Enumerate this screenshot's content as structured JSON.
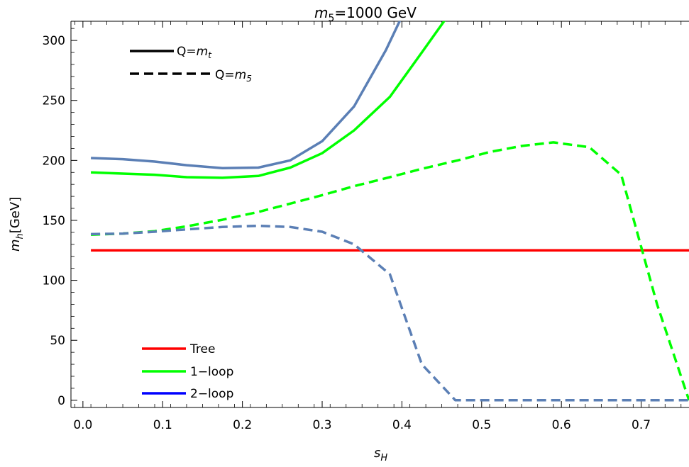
{
  "chart_data": {
    "type": "line",
    "title_main": "m",
    "title_sub": "5",
    "title_rest": "=1000 GeV",
    "xlabel_main": "s",
    "xlabel_sub": "H",
    "ylabel_main": "m",
    "ylabel_sub": "h",
    "ylabel_rest": "[GeV]",
    "xlim": [
      -0.015,
      0.76
    ],
    "ylim": [
      -6,
      316
    ],
    "xticks": [
      "0.0",
      "0.1",
      "0.2",
      "0.3",
      "0.4",
      "0.5",
      "0.6",
      "0.7"
    ],
    "xtick_values": [
      0.0,
      0.1,
      0.2,
      0.3,
      0.4,
      0.5,
      0.6,
      0.7
    ],
    "yticks": [
      "0",
      "50",
      "100",
      "150",
      "200",
      "250",
      "300"
    ],
    "ytick_values": [
      0,
      50,
      100,
      150,
      200,
      250,
      300
    ],
    "colors": {
      "tree": "#ff0000",
      "one_loop": "#00ff00",
      "two_loop": "#5b7fb5",
      "two_loop_legend": "#0000ff",
      "scale_legend": "#000000"
    },
    "series": [
      {
        "name": "Tree",
        "style": "solid",
        "color": "#ff0000",
        "x": [
          0.01,
          0.76
        ],
        "y": [
          125,
          125
        ]
      },
      {
        "name": "1-loop",
        "scale": "Q=m_t",
        "style": "solid",
        "color": "#00ff00",
        "x": [
          0.01,
          0.05,
          0.09,
          0.13,
          0.175,
          0.22,
          0.26,
          0.3,
          0.34,
          0.385,
          0.425,
          0.455,
          0.47
        ],
        "y": [
          190,
          189,
          188,
          186,
          185.5,
          187,
          194,
          206,
          225,
          253,
          290,
          318,
          330
        ]
      },
      {
        "name": "2-loop",
        "scale": "Q=m_t",
        "style": "solid",
        "color": "#5b7fb5",
        "x": [
          0.01,
          0.05,
          0.09,
          0.13,
          0.175,
          0.22,
          0.26,
          0.3,
          0.34,
          0.38,
          0.4,
          0.41
        ],
        "y": [
          202,
          201,
          199,
          196,
          193.5,
          194,
          200,
          216,
          245,
          292,
          320,
          332
        ]
      },
      {
        "name": "1-loop",
        "scale": "Q=m_5",
        "style": "dashed",
        "color": "#00ff00",
        "x": [
          0.01,
          0.05,
          0.09,
          0.13,
          0.175,
          0.22,
          0.26,
          0.3,
          0.34,
          0.385,
          0.425,
          0.47,
          0.51,
          0.55,
          0.59,
          0.635,
          0.675,
          0.72,
          0.76
        ],
        "y": [
          138,
          139,
          141,
          145,
          150.5,
          157,
          164,
          171,
          178.5,
          186,
          193,
          200,
          207,
          212,
          215,
          211,
          188,
          80,
          0
        ]
      },
      {
        "name": "2-loop",
        "scale": "Q=m_5",
        "style": "dashed",
        "color": "#5b7fb5",
        "x": [
          0.01,
          0.05,
          0.09,
          0.13,
          0.175,
          0.22,
          0.26,
          0.3,
          0.34,
          0.385,
          0.425,
          0.467,
          0.76
        ],
        "y": [
          138.5,
          139,
          140.5,
          142.5,
          144.5,
          145.5,
          144.5,
          140.5,
          130,
          105,
          30,
          0,
          0
        ]
      }
    ],
    "legend_scale": [
      {
        "style": "solid",
        "label_main": "Q=",
        "label_var": "m",
        "label_sub": "t"
      },
      {
        "style": "dashed",
        "label_main": "Q=",
        "label_var": "m",
        "label_sub": "5"
      }
    ],
    "legend_loops": [
      {
        "label": "Tree",
        "color": "#ff0000"
      },
      {
        "label": "1−loop",
        "color": "#00ff00"
      },
      {
        "label": "2−loop",
        "color": "#0000ff"
      }
    ]
  }
}
